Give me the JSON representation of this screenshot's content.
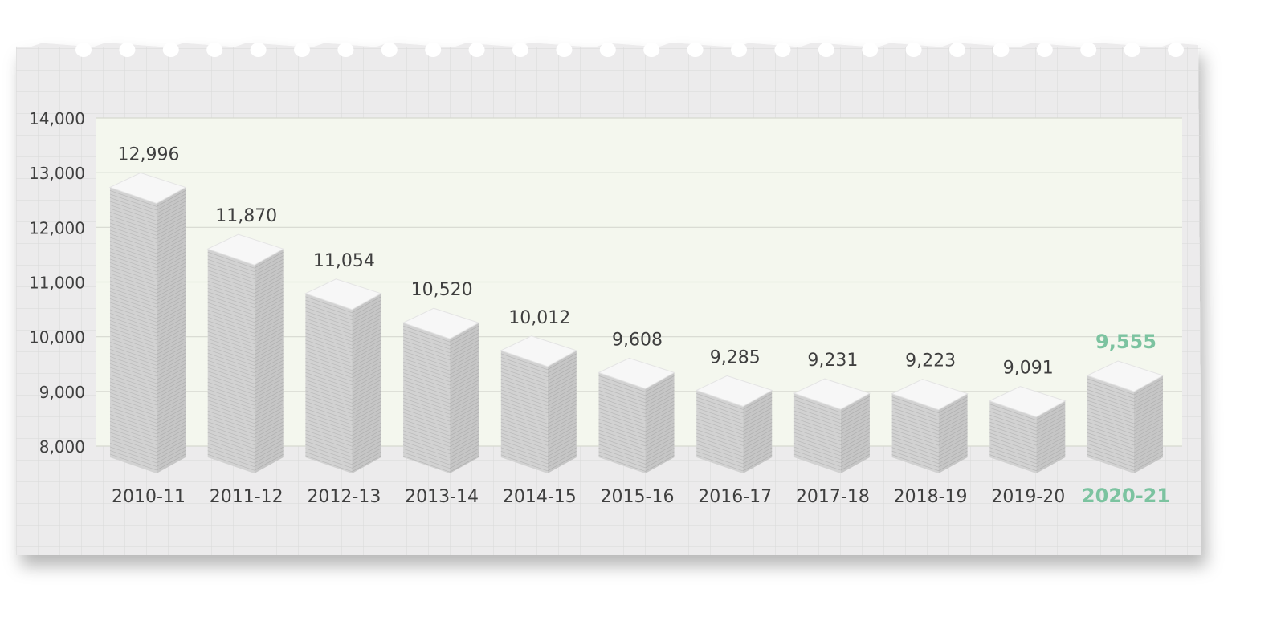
{
  "chart_data": {
    "type": "bar",
    "title": "",
    "xlabel": "",
    "ylabel": "",
    "categories": [
      "2010-11",
      "2011-12",
      "2012-13",
      "2013-14",
      "2014-15",
      "2015-16",
      "2016-17",
      "2017-18",
      "2018-19",
      "2019-20",
      "2020-21"
    ],
    "values": [
      12996,
      11870,
      11054,
      10520,
      10012,
      9608,
      9285,
      9231,
      9223,
      9091,
      9555
    ],
    "value_labels": [
      "12,996",
      "11,870",
      "11,054",
      "10,520",
      "10,012",
      "9,608",
      "9,285",
      "9,231",
      "9,223",
      "9,091",
      "9,555"
    ],
    "ylim": [
      8000,
      14000
    ],
    "yticks": [
      8000,
      9000,
      10000,
      11000,
      12000,
      13000,
      14000
    ],
    "ytick_labels": [
      "8,000",
      "9,000",
      "10,000",
      "11,000",
      "12,000",
      "13,000",
      "14,000"
    ],
    "highlight_index": 10,
    "grid": true,
    "legend": "none",
    "colors": {
      "paper": "#ecebec",
      "paper_grid": "#d9d8d9",
      "plot_bg": "#f4f7ee",
      "plot_grid": "#d6d9d0",
      "text": "#3f3f3f",
      "highlight": "#7cc3a0",
      "stack_front": "#d2d2d2",
      "stack_side": "#c6c6c6",
      "stack_top": "#f7f7f7"
    }
  }
}
